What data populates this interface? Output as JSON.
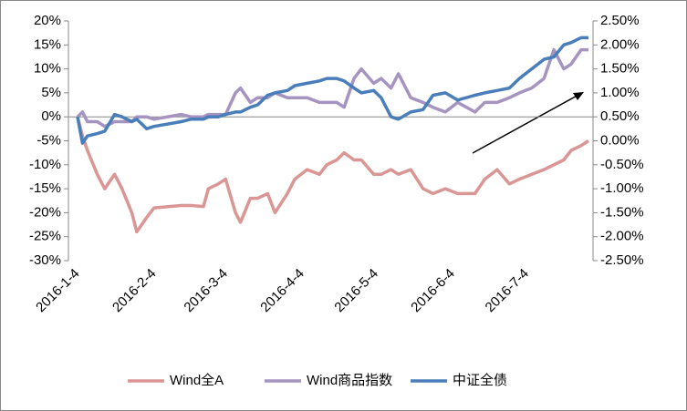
{
  "chart_data": {
    "type": "line",
    "x": [
      "2016-1-4",
      "2016-1-6",
      "2016-1-8",
      "2016-1-12",
      "2016-1-15",
      "2016-1-19",
      "2016-1-22",
      "2016-1-26",
      "2016-1-28",
      "2016-2-1",
      "2016-2-4",
      "2016-2-15",
      "2016-2-19",
      "2016-2-24",
      "2016-2-26",
      "2016-3-1",
      "2016-3-4",
      "2016-3-8",
      "2016-3-10",
      "2016-3-14",
      "2016-3-17",
      "2016-3-21",
      "2016-3-24",
      "2016-3-29",
      "2016-4-1",
      "2016-4-6",
      "2016-4-11",
      "2016-4-14",
      "2016-4-18",
      "2016-4-21",
      "2016-4-25",
      "2016-4-28",
      "2016-5-3",
      "2016-5-6",
      "2016-5-10",
      "2016-5-13",
      "2016-5-18",
      "2016-5-23",
      "2016-5-27",
      "2016-6-1",
      "2016-6-6",
      "2016-6-13",
      "2016-6-17",
      "2016-6-22",
      "2016-6-27",
      "2016-7-1",
      "2016-7-6",
      "2016-7-11",
      "2016-7-15",
      "2016-7-19",
      "2016-7-22",
      "2016-7-26",
      "2016-7-29"
    ],
    "xticks": [
      "2016-1-4",
      "2016-2-4",
      "2016-3-4",
      "2016-4-4",
      "2016-5-4",
      "2016-6-4",
      "2016-7-4"
    ],
    "series": [
      {
        "name": "Wind全A",
        "color": "#d99694",
        "values": [
          0,
          -4,
          -7,
          -12,
          -15,
          -12,
          -15,
          -20,
          -24,
          -21,
          -19,
          -18.5,
          -18.5,
          -18.7,
          -15,
          -14,
          -13,
          -20,
          -22,
          -17,
          -17,
          -16,
          -20,
          -16,
          -13,
          -11,
          -12,
          -10,
          -9,
          -7.5,
          -9,
          -9,
          -12,
          -12,
          -11,
          -12,
          -11,
          -15,
          -16,
          -15,
          -16,
          -16,
          -13,
          -11,
          -14,
          -13,
          -12,
          -11,
          -10,
          -9,
          -7,
          -6,
          -5
        ]
      },
      {
        "name": "Wind商品指数",
        "color": "#a593c0",
        "values": [
          0,
          1,
          -1,
          -1,
          -2,
          -1,
          -1,
          -1,
          0,
          0,
          -0.5,
          0.5,
          0,
          0,
          0.5,
          0.5,
          0.5,
          5,
          6,
          3,
          4,
          4,
          5,
          4,
          4,
          4,
          3,
          3,
          3,
          2,
          8,
          10,
          7,
          8,
          6,
          9,
          4,
          3,
          2,
          1,
          3,
          1,
          3,
          3,
          4,
          5,
          6,
          8,
          14,
          10,
          11,
          14,
          14
        ]
      },
      {
        "name": "中证全债",
        "color": "#4a7ebb",
        "axis": "y2",
        "values": [
          0.5,
          -0.05,
          0.1,
          0.15,
          0.2,
          0.55,
          0.5,
          0.4,
          0.45,
          0.25,
          0.3,
          0.4,
          0.45,
          0.45,
          0.5,
          0.5,
          0.55,
          0.6,
          0.6,
          0.7,
          0.75,
          0.95,
          1.0,
          1.05,
          1.15,
          1.2,
          1.25,
          1.3,
          1.3,
          1.25,
          1.1,
          1.0,
          1.05,
          0.9,
          0.5,
          0.45,
          0.6,
          0.65,
          0.95,
          1.0,
          0.85,
          0.95,
          1.0,
          1.05,
          1.1,
          1.3,
          1.5,
          1.7,
          1.75,
          2.0,
          2.05,
          2.15,
          2.15
        ]
      }
    ],
    "ylim": [
      -30,
      20
    ],
    "yticks": [
      {
        "value": -30,
        "label": "-30%"
      },
      {
        "value": -25,
        "label": "-25%"
      },
      {
        "value": -20,
        "label": "-20%"
      },
      {
        "value": -15,
        "label": "-15%"
      },
      {
        "value": -10,
        "label": "-10%"
      },
      {
        "value": -5,
        "label": "-5%"
      },
      {
        "value": 0,
        "label": "0%"
      },
      {
        "value": 5,
        "label": "5%"
      },
      {
        "value": 10,
        "label": "10%"
      },
      {
        "value": 15,
        "label": "15%"
      },
      {
        "value": 20,
        "label": "20%"
      }
    ],
    "y2lim": [
      -2.5,
      2.5
    ],
    "y2ticks": [
      {
        "value": -2.5,
        "label": "-2.50%"
      },
      {
        "value": -2,
        "label": "-2.00%"
      },
      {
        "value": -1.5,
        "label": "-1.50%"
      },
      {
        "value": -1,
        "label": "-1.00%"
      },
      {
        "value": -0.5,
        "label": "-0.50%"
      },
      {
        "value": 0,
        "label": "0.00%"
      },
      {
        "value": 0.5,
        "label": "0.50%"
      },
      {
        "value": 1,
        "label": "1.00%"
      },
      {
        "value": 1.5,
        "label": "1.50%"
      },
      {
        "value": 2,
        "label": "2.00%"
      },
      {
        "value": 2.5,
        "label": "2.50%"
      }
    ],
    "legend": "bottom"
  }
}
